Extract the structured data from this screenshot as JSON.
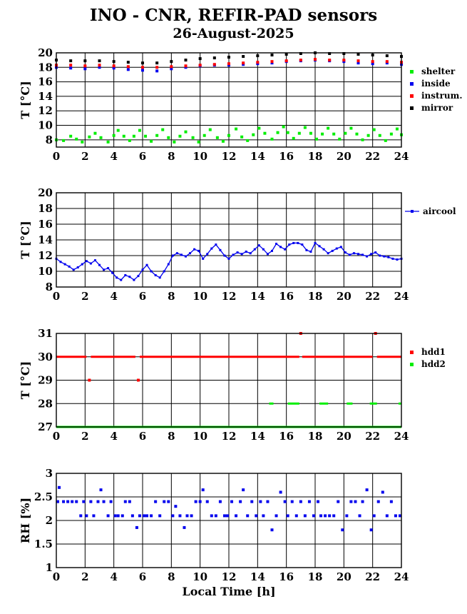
{
  "title": "INO - CNR, REFIR-PAD sensors",
  "subtitle": "26-August-2025",
  "chart_data": [
    {
      "type": "scatter",
      "ylabel": "T [°C]",
      "xlabel": "",
      "xlim": [
        0,
        24
      ],
      "ylim": [
        7,
        20
      ],
      "xticks": [
        0,
        2,
        4,
        6,
        8,
        10,
        12,
        14,
        16,
        18,
        20,
        22,
        24
      ],
      "yticks": [
        8,
        10,
        12,
        14,
        16,
        18,
        20
      ],
      "grid": true,
      "legend": "right",
      "series": [
        {
          "name": "shelter",
          "color": "#00ee00",
          "x": [
            0.0,
            0.5,
            1.0,
            1.4,
            1.8,
            2.3,
            2.7,
            3.1,
            3.6,
            4.0,
            4.3,
            4.7,
            5.1,
            5.4,
            5.8,
            6.2,
            6.6,
            7.0,
            7.4,
            7.8,
            8.2,
            8.6,
            9.0,
            9.5,
            9.9,
            10.3,
            10.7,
            11.2,
            11.6,
            12.0,
            12.5,
            12.9,
            13.3,
            13.7,
            14.1,
            14.5,
            15.0,
            15.4,
            15.8,
            16.1,
            16.5,
            16.9,
            17.3,
            17.7,
            18.1,
            18.5,
            18.9,
            19.3,
            19.7,
            20.1,
            20.5,
            20.9,
            21.3,
            21.7,
            22.1,
            22.5,
            22.9,
            23.3,
            23.7,
            24.0
          ],
          "y": [
            8.0,
            7.9,
            8.5,
            8.1,
            7.7,
            8.4,
            8.9,
            8.3,
            7.7,
            8.6,
            9.3,
            8.5,
            7.9,
            8.5,
            9.3,
            8.5,
            7.8,
            8.6,
            9.4,
            8.3,
            7.7,
            8.5,
            9.1,
            8.3,
            7.7,
            8.6,
            9.4,
            8.3,
            7.8,
            8.6,
            9.5,
            8.4,
            7.9,
            8.7,
            9.6,
            8.9,
            8.1,
            9.0,
            9.8,
            9.0,
            8.2,
            8.9,
            9.7,
            8.9,
            8.1,
            8.8,
            9.6,
            8.8,
            8.1,
            8.9,
            9.6,
            8.8,
            8.0,
            8.6,
            9.4,
            8.6,
            7.9,
            8.8,
            9.5,
            8.7
          ]
        },
        {
          "name": "inside",
          "color": "#0000ee",
          "x": [
            0,
            1,
            2,
            3,
            4,
            5,
            6,
            7,
            8,
            9,
            10,
            11,
            12,
            13,
            14,
            15,
            16,
            17,
            18,
            19,
            20,
            21,
            22,
            23,
            24
          ],
          "y": [
            18.0,
            17.9,
            17.8,
            18.0,
            17.9,
            17.7,
            17.6,
            17.5,
            17.8,
            18.0,
            18.2,
            18.3,
            18.3,
            18.4,
            18.5,
            18.6,
            18.8,
            18.9,
            19.0,
            18.9,
            18.8,
            18.6,
            18.5,
            18.6,
            18.4
          ]
        },
        {
          "name": "instrum.",
          "color": "#ff0000",
          "x": [
            0,
            1,
            2,
            3,
            4,
            5,
            6,
            7,
            8,
            9,
            10,
            11,
            12,
            13,
            14,
            15,
            16,
            17,
            18,
            19,
            20,
            21,
            22,
            23,
            24
          ],
          "y": [
            18.3,
            18.3,
            18.2,
            18.3,
            18.2,
            18.1,
            18.0,
            18.0,
            18.1,
            18.2,
            18.3,
            18.4,
            18.5,
            18.6,
            18.7,
            18.8,
            18.9,
            19.0,
            19.1,
            19.0,
            19.0,
            18.9,
            18.8,
            18.8,
            18.7
          ]
        },
        {
          "name": "mirror",
          "color": "#000000",
          "x": [
            0,
            1,
            2,
            3,
            4,
            5,
            6,
            7,
            8,
            9,
            10,
            11,
            12,
            13,
            14,
            15,
            16,
            17,
            18,
            19,
            20,
            21,
            22,
            23,
            24
          ],
          "y": [
            19.0,
            18.9,
            18.9,
            18.9,
            18.8,
            18.7,
            18.6,
            18.6,
            18.8,
            19.0,
            19.2,
            19.3,
            19.4,
            19.5,
            19.6,
            19.7,
            19.8,
            19.9,
            20.0,
            19.9,
            19.9,
            19.8,
            19.7,
            19.6,
            19.5
          ]
        }
      ]
    },
    {
      "type": "line",
      "ylabel": "T [°C]",
      "xlabel": "",
      "xlim": [
        0,
        24
      ],
      "ylim": [
        8,
        20
      ],
      "xticks": [
        0,
        2,
        4,
        6,
        8,
        10,
        12,
        14,
        16,
        18,
        20,
        22,
        24
      ],
      "yticks": [
        8,
        10,
        12,
        14,
        16,
        18,
        20
      ],
      "grid": true,
      "legend": "right",
      "series": [
        {
          "name": "aircool",
          "color": "#0000ee",
          "x": [
            0.0,
            0.3,
            0.6,
            0.9,
            1.2,
            1.5,
            1.8,
            2.1,
            2.4,
            2.7,
            3.0,
            3.3,
            3.6,
            3.9,
            4.2,
            4.5,
            4.8,
            5.1,
            5.4,
            5.7,
            6.0,
            6.3,
            6.6,
            6.9,
            7.2,
            7.5,
            7.8,
            8.1,
            8.4,
            8.7,
            9.0,
            9.3,
            9.6,
            9.9,
            10.2,
            10.5,
            10.8,
            11.1,
            11.4,
            11.7,
            12.0,
            12.3,
            12.6,
            12.9,
            13.2,
            13.5,
            13.8,
            14.1,
            14.4,
            14.7,
            15.0,
            15.3,
            15.6,
            15.9,
            16.2,
            16.5,
            16.8,
            17.1,
            17.4,
            17.7,
            18.0,
            18.3,
            18.6,
            18.9,
            19.2,
            19.5,
            19.8,
            20.1,
            20.4,
            20.7,
            21.0,
            21.3,
            21.6,
            21.9,
            22.2,
            22.5,
            22.8,
            23.1,
            23.4,
            23.7,
            24.0
          ],
          "y": [
            11.6,
            11.2,
            10.9,
            10.6,
            10.2,
            10.5,
            10.9,
            11.3,
            11.0,
            11.4,
            10.8,
            10.2,
            10.4,
            9.8,
            9.2,
            8.9,
            9.5,
            9.3,
            8.9,
            9.4,
            10.2,
            10.8,
            10.0,
            9.5,
            9.2,
            10.0,
            10.9,
            12.0,
            12.3,
            12.1,
            11.9,
            12.3,
            12.8,
            12.6,
            11.6,
            12.2,
            12.9,
            13.4,
            12.7,
            12.0,
            11.6,
            12.1,
            12.4,
            12.2,
            12.5,
            12.3,
            12.8,
            13.3,
            12.8,
            12.2,
            12.6,
            13.5,
            13.1,
            12.8,
            13.4,
            13.6,
            13.6,
            13.4,
            12.7,
            12.5,
            13.6,
            13.2,
            12.8,
            12.3,
            12.6,
            12.9,
            13.1,
            12.4,
            12.1,
            12.3,
            12.2,
            12.1,
            11.9,
            12.2,
            12.4,
            12.0,
            11.9,
            11.8,
            11.6,
            11.5,
            11.6
          ]
        }
      ]
    },
    {
      "type": "scatter",
      "ylabel": "T [°C]",
      "xlabel": "",
      "xlim": [
        0,
        24
      ],
      "ylim": [
        27,
        31
      ],
      "xticks": [
        0,
        2,
        4,
        6,
        8,
        10,
        12,
        14,
        16,
        18,
        20,
        22,
        24
      ],
      "yticks": [
        27,
        28,
        29,
        30,
        31
      ],
      "grid": true,
      "legend": "right",
      "series": [
        {
          "name": "hdd1",
          "color": "#ff0000",
          "segments": [
            {
              "x": [
                0,
                2.1
              ],
              "y": 30
            },
            {
              "x": [
                2.4,
                5.5
              ],
              "y": 30
            },
            {
              "x": [
                5.8,
                16.9
              ],
              "y": 30
            },
            {
              "x": [
                17.1,
                22.0
              ],
              "y": 30
            },
            {
              "x": [
                22.3,
                24.0
              ],
              "y": 30
            }
          ],
          "x": [
            2.3,
            5.7,
            17.0,
            22.2
          ],
          "y": [
            29,
            29,
            31,
            31
          ]
        },
        {
          "name": "hdd2",
          "color": "#00ee00",
          "segments": [
            {
              "x": [
                0,
                24
              ],
              "y": 27
            },
            {
              "x": [
                14.8,
                15.1
              ],
              "y": 28
            },
            {
              "x": [
                16.1,
                16.9
              ],
              "y": 28
            },
            {
              "x": [
                18.3,
                18.9
              ],
              "y": 28
            },
            {
              "x": [
                20.2,
                20.6
              ],
              "y": 28
            },
            {
              "x": [
                21.8,
                22.3
              ],
              "y": 28
            },
            {
              "x": [
                23.8,
                24.0
              ],
              "y": 28
            }
          ],
          "x": [],
          "y": []
        }
      ]
    },
    {
      "type": "scatter",
      "ylabel": "RH [%]",
      "xlabel": "Local Time [h]",
      "xlim": [
        0,
        24
      ],
      "ylim": [
        1,
        3
      ],
      "xticks": [
        0,
        2,
        4,
        6,
        8,
        10,
        12,
        14,
        16,
        18,
        20,
        22,
        24
      ],
      "yticks": [
        1,
        1.5,
        2,
        2.5,
        3
      ],
      "ytick_labels": [
        "1",
        "1.5",
        "2",
        "2.5",
        "3"
      ],
      "grid": true,
      "series": [
        {
          "name": "",
          "color": "#0000ee",
          "x": [
            0.1,
            0.2,
            0.5,
            0.8,
            1.1,
            1.4,
            1.7,
            1.9,
            2.1,
            2.4,
            2.6,
            2.9,
            3.1,
            3.3,
            3.6,
            3.8,
            4.1,
            4.3,
            4.6,
            4.8,
            5.1,
            5.3,
            5.6,
            5.8,
            6.1,
            6.3,
            6.6,
            6.9,
            7.2,
            7.5,
            7.8,
            8.1,
            8.3,
            8.6,
            8.9,
            9.1,
            9.4,
            9.7,
            10.0,
            10.2,
            10.5,
            10.8,
            11.1,
            11.4,
            11.7,
            11.9,
            12.2,
            12.5,
            12.8,
            13.0,
            13.3,
            13.6,
            13.9,
            14.2,
            14.4,
            14.7,
            15.0,
            15.3,
            15.6,
            15.9,
            16.1,
            16.4,
            16.7,
            17.0,
            17.3,
            17.6,
            17.9,
            18.2,
            18.4,
            18.7,
            19.0,
            19.3,
            19.6,
            19.9,
            20.2,
            20.5,
            20.8,
            21.1,
            21.3,
            21.6,
            21.9,
            22.1,
            22.4,
            22.7,
            23.0,
            23.3,
            23.6,
            23.9
          ],
          "y": [
            2.4,
            2.7,
            2.4,
            2.4,
            2.4,
            2.4,
            2.1,
            2.4,
            2.1,
            2.4,
            2.1,
            2.4,
            2.65,
            2.4,
            2.1,
            2.4,
            2.1,
            2.1,
            2.1,
            2.4,
            2.4,
            2.1,
            1.85,
            2.1,
            2.1,
            2.1,
            2.1,
            2.4,
            2.1,
            2.4,
            2.4,
            2.1,
            2.3,
            2.1,
            1.85,
            2.1,
            2.1,
            2.4,
            2.4,
            2.65,
            2.4,
            2.1,
            2.1,
            2.4,
            2.1,
            2.1,
            2.4,
            2.1,
            2.4,
            2.65,
            2.1,
            2.4,
            2.1,
            2.4,
            2.1,
            2.4,
            1.8,
            2.1,
            2.6,
            2.4,
            2.1,
            2.4,
            2.1,
            2.4,
            2.1,
            2.4,
            2.1,
            2.4,
            2.1,
            2.1,
            2.1,
            2.1,
            2.4,
            1.8,
            2.1,
            2.4,
            2.4,
            2.1,
            2.4,
            2.65,
            1.8,
            2.1,
            2.4,
            2.6,
            2.1,
            2.4,
            2.1,
            2.1
          ]
        }
      ]
    }
  ]
}
